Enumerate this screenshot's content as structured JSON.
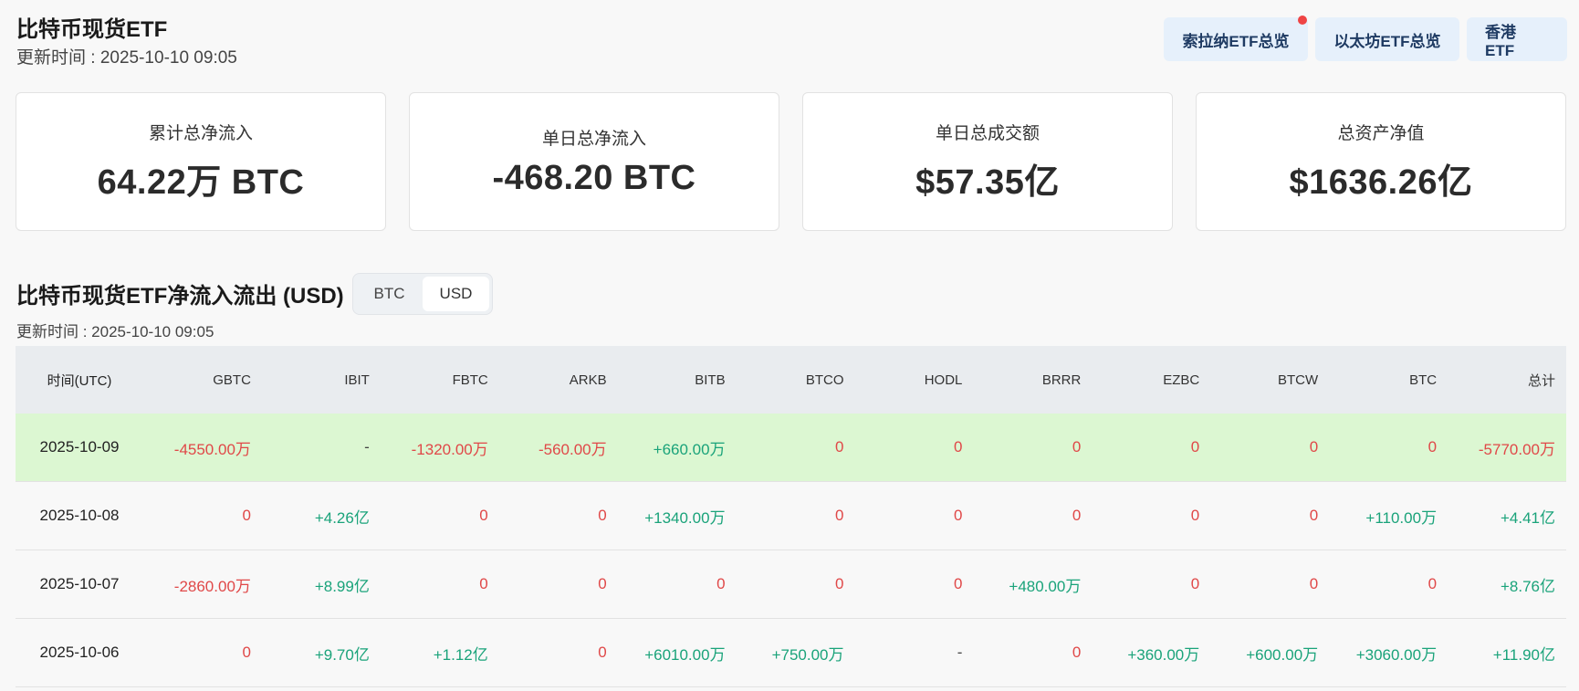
{
  "header": {
    "title": "比特币现货ETF",
    "update_time": "更新时间 : 2025-10-10 09:05",
    "buttons": {
      "solana": "索拉纳ETF总览",
      "ethereum": "以太坊ETF总览",
      "hongkong": "香港 ETF"
    }
  },
  "stats": [
    {
      "label": "累计总净流入",
      "value": "64.22万 BTC"
    },
    {
      "label": "单日总净流入",
      "value": "-468.20 BTC"
    },
    {
      "label": "单日总成交额",
      "value": "$57.35亿"
    },
    {
      "label": "总资产净值",
      "value": "$1636.26亿"
    }
  ],
  "section": {
    "title": "比特币现货ETF净流入流出 (USD)",
    "toggle": {
      "btc": "BTC",
      "usd": "USD",
      "selected": "USD"
    },
    "update_time": "更新时间 : 2025-10-10 09:05"
  },
  "table": {
    "headers": [
      "时间(UTC)",
      "GBTC",
      "IBIT",
      "FBTC",
      "ARKB",
      "BITB",
      "BTCO",
      "HODL",
      "BRRR",
      "EZBC",
      "BTCW",
      "BTC",
      "总计"
    ],
    "rows": [
      {
        "highlight": true,
        "cells": [
          "2025-10-09",
          "-4550.00万",
          "-",
          "-1320.00万",
          "-560.00万",
          "+660.00万",
          "0",
          "0",
          "0",
          "0",
          "0",
          "0",
          "-5770.00万"
        ]
      },
      {
        "highlight": false,
        "cells": [
          "2025-10-08",
          "0",
          "+4.26亿",
          "0",
          "0",
          "+1340.00万",
          "0",
          "0",
          "0",
          "0",
          "0",
          "+110.00万",
          "+4.41亿"
        ]
      },
      {
        "highlight": false,
        "cells": [
          "2025-10-07",
          "-2860.00万",
          "+8.99亿",
          "0",
          "0",
          "0",
          "0",
          "0",
          "+480.00万",
          "0",
          "0",
          "0",
          "+8.76亿"
        ]
      },
      {
        "highlight": false,
        "cells": [
          "2025-10-06",
          "0",
          "+9.70亿",
          "+1.12亿",
          "0",
          "+6010.00万",
          "+750.00万",
          "-",
          "0",
          "+360.00万",
          "+600.00万",
          "+3060.00万",
          "+11.90亿"
        ]
      }
    ]
  },
  "colors": {
    "positive": "#1aa37a",
    "negative": "#e04848",
    "highlight_row": "#dcf7d2",
    "button_bg": "#e6f0fb",
    "notification_dot": "#ef4444"
  }
}
